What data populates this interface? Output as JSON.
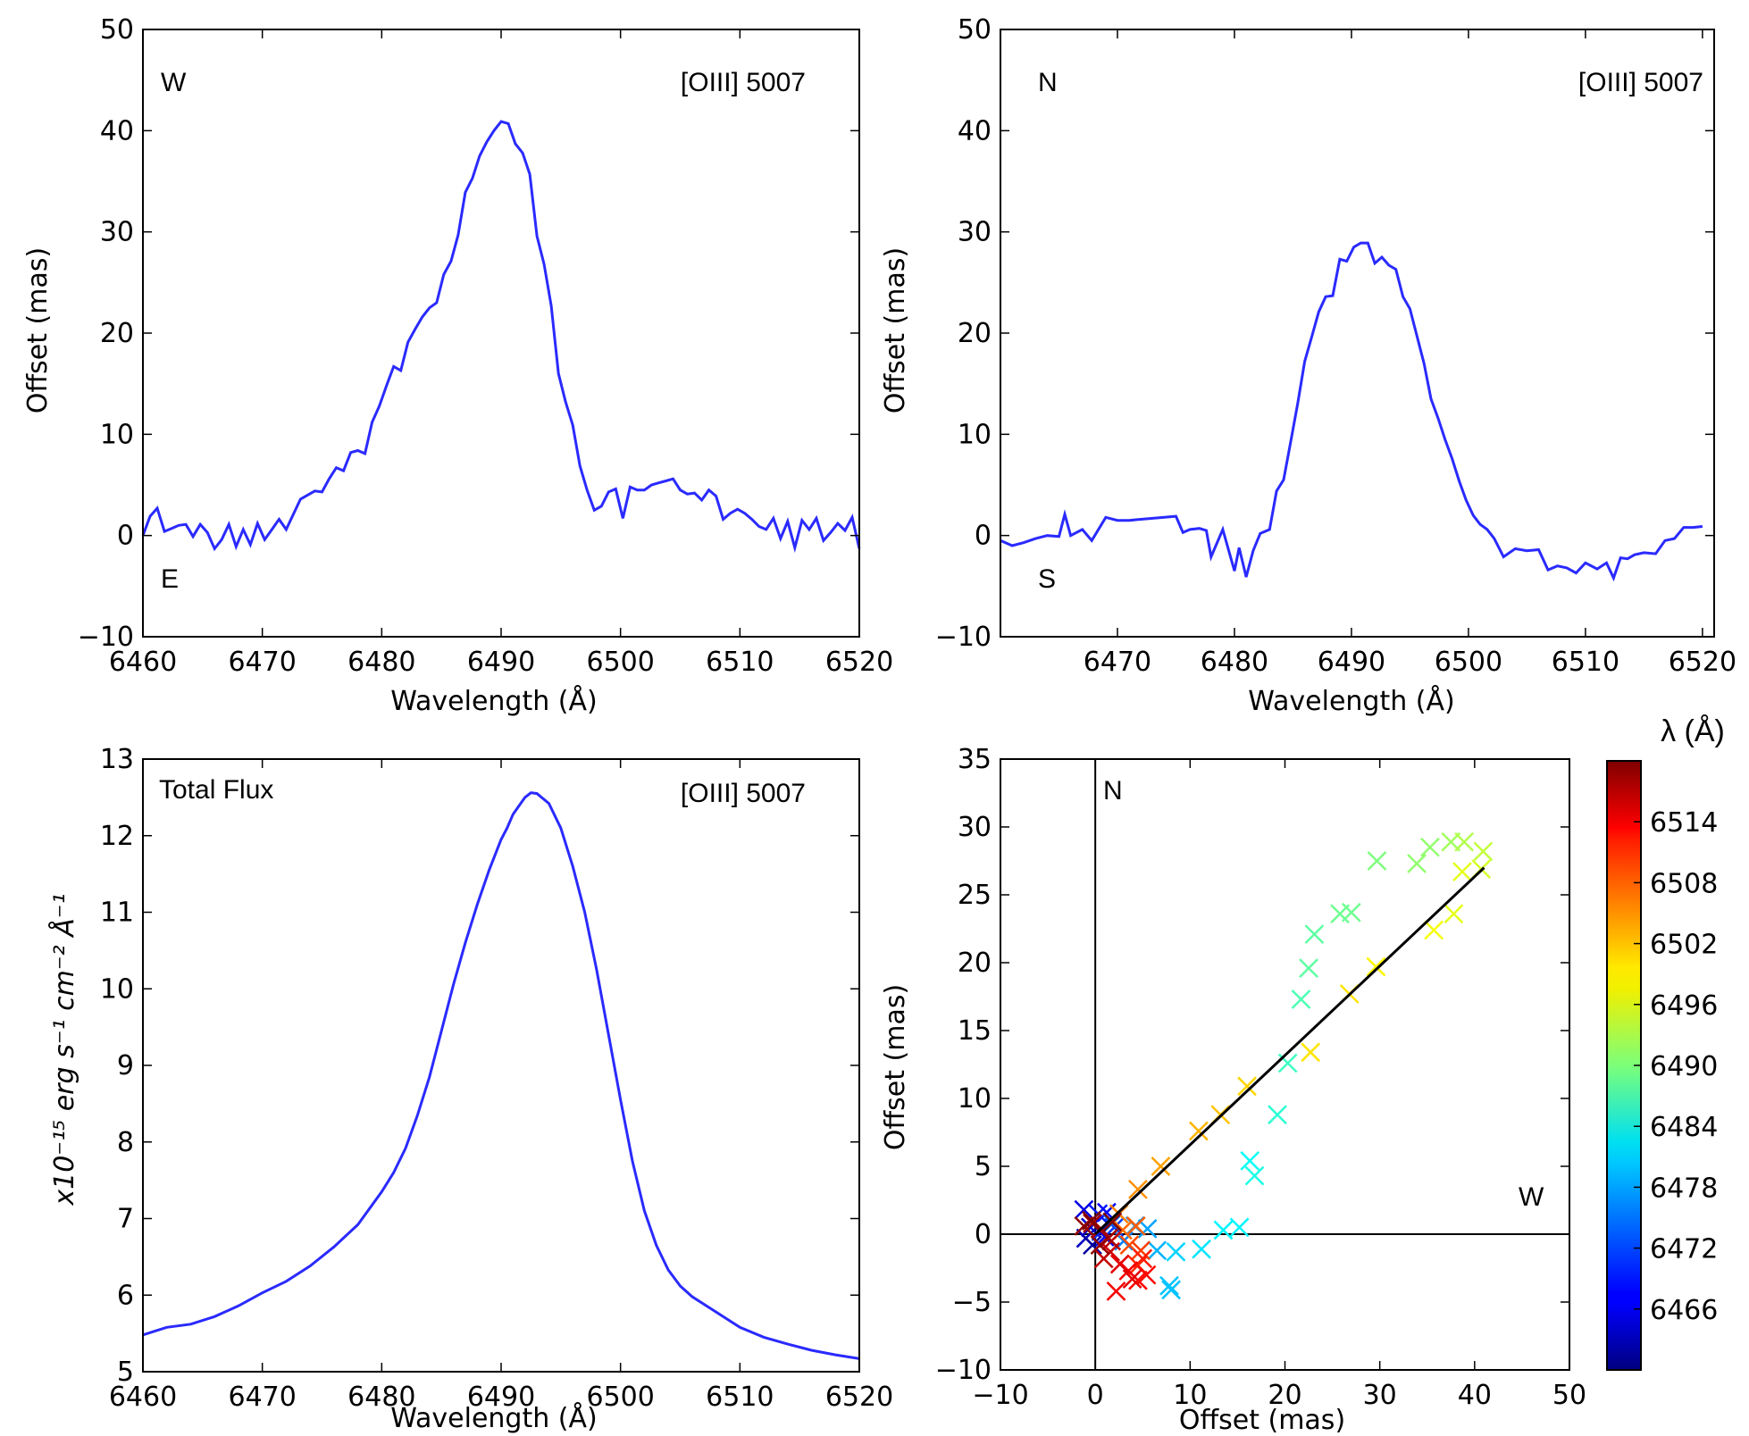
{
  "chart_data": [
    {
      "id": "w_e",
      "type": "line",
      "xlabel": "Wavelength (Å)",
      "ylabel": "Offset (mas)",
      "xlim": [
        6460,
        6520
      ],
      "ylim": [
        -10,
        50
      ],
      "xticks": [
        6460,
        6470,
        6480,
        6490,
        6500,
        6510,
        6520
      ],
      "yticks": [
        -10,
        0,
        10,
        20,
        30,
        40,
        50
      ],
      "xtick_labels": [
        "6460",
        "6470",
        "6480",
        "6490",
        "6500",
        "6510",
        "6520"
      ],
      "ytick_labels": [
        "−10",
        "0",
        "10",
        "20",
        "30",
        "40",
        "50"
      ],
      "annotations": {
        "top_left": "W",
        "top_right": "[OIII] 5007",
        "bottom_left": "E"
      },
      "line_color": "#2a2aff",
      "x": [
        6460.0,
        6460.6,
        6461.2,
        6461.8,
        6462.4,
        6463.0,
        6463.6,
        6464.2,
        6464.8,
        6465.4,
        6466.0,
        6466.6,
        6467.2,
        6467.8,
        6468.4,
        6469.0,
        6469.6,
        6470.2,
        6470.8,
        6471.4,
        6472.0,
        6472.6,
        6473.2,
        6473.8,
        6474.4,
        6475.0,
        6475.6,
        6476.2,
        6476.8,
        6477.4,
        6478.0,
        6478.6,
        6479.2,
        6479.8,
        6480.4,
        6481.0,
        6481.6,
        6482.2,
        6482.8,
        6483.4,
        6484.0,
        6484.6,
        6485.2,
        6485.8,
        6486.4,
        6487.0,
        6487.6,
        6488.2,
        6488.8,
        6489.4,
        6490.0,
        6490.6,
        6491.2,
        6491.8,
        6492.4,
        6493.0,
        6493.6,
        6494.2,
        6494.8,
        6495.4,
        6496.0,
        6496.6,
        6497.2,
        6497.8,
        6498.4,
        6499.0,
        6499.6,
        6500.2,
        6500.8,
        6501.4,
        6502.0,
        6502.6,
        6503.2,
        6503.8,
        6504.4,
        6505.0,
        6505.6,
        6506.2,
        6506.8,
        6507.4,
        6508.0,
        6508.6,
        6509.2,
        6509.8,
        6510.4,
        6511.0,
        6511.6,
        6512.2,
        6512.8,
        6513.4,
        6514.0,
        6514.6,
        6515.2,
        6515.8,
        6516.4,
        6517.0,
        6517.6,
        6518.2,
        6518.8,
        6519.4,
        6520.0
      ],
      "y": [
        0.0,
        1.9,
        2.7,
        0.4,
        0.7,
        1.0,
        1.1,
        -0.1,
        1.1,
        0.3,
        -1.3,
        -0.4,
        1.1,
        -1.1,
        0.6,
        -0.9,
        1.2,
        -0.4,
        0.6,
        1.6,
        0.6,
        2.1,
        3.6,
        4.0,
        4.4,
        4.3,
        5.6,
        6.7,
        6.4,
        8.2,
        8.4,
        8.1,
        11.2,
        12.8,
        14.8,
        16.7,
        16.3,
        19.1,
        20.4,
        21.6,
        22.5,
        23.0,
        25.8,
        27.1,
        29.7,
        33.9,
        35.3,
        37.5,
        38.9,
        40.0,
        40.9,
        40.7,
        38.7,
        37.8,
        35.7,
        29.6,
        26.8,
        22.7,
        16.0,
        13.2,
        10.9,
        6.9,
        4.5,
        2.5,
        2.9,
        4.3,
        4.6,
        1.7,
        4.8,
        4.5,
        4.5,
        5.0,
        5.2,
        5.4,
        5.6,
        4.5,
        4.1,
        4.2,
        3.5,
        4.5,
        3.9,
        1.6,
        2.2,
        2.6,
        2.2,
        1.6,
        0.9,
        0.6,
        1.7,
        -0.3,
        1.4,
        -1.2,
        1.5,
        0.6,
        1.7,
        -0.5,
        0.3,
        1.2,
        0.5,
        1.8,
        -1.3
      ]
    },
    {
      "id": "n_s",
      "type": "line",
      "xlabel": "Wavelength (Å)",
      "ylabel": "Offset (mas)",
      "xlim": [
        6460,
        6521
      ],
      "ylim": [
        -10,
        50
      ],
      "xticks": [
        6470,
        6480,
        6490,
        6500,
        6510,
        6520
      ],
      "yticks": [
        -10,
        0,
        10,
        20,
        30,
        40,
        50
      ],
      "xtick_labels": [
        "6470",
        "6480",
        "6490",
        "6500",
        "6510",
        "6520"
      ],
      "ytick_labels": [
        "−10",
        "0",
        "10",
        "20",
        "30",
        "40",
        "50"
      ],
      "annotations": {
        "top_left": "N",
        "top_right": "[OIII] 5007",
        "bottom_left": "S"
      },
      "line_color": "#2a2aff",
      "x": [
        6460.0,
        6461.0,
        6462.0,
        6463.0,
        6464.0,
        6465.0,
        6465.5,
        6466.0,
        6467.0,
        6467.8,
        6469.0,
        6470.0,
        6471.0,
        6472.0,
        6473.0,
        6474.0,
        6475.0,
        6475.6,
        6476.2,
        6477.0,
        6477.6,
        6478.0,
        6479.0,
        6480.0,
        6480.4,
        6481.0,
        6481.6,
        6482.2,
        6483.0,
        6483.6,
        6484.2,
        6484.8,
        6485.4,
        6486.0,
        6486.6,
        6487.2,
        6487.8,
        6488.4,
        6489.0,
        6489.6,
        6490.2,
        6490.8,
        6491.4,
        6492.0,
        6492.6,
        6493.2,
        6493.8,
        6494.4,
        6495.0,
        6495.6,
        6496.2,
        6496.8,
        6497.4,
        6498.0,
        6498.6,
        6499.2,
        6499.8,
        6500.4,
        6501.0,
        6501.6,
        6502.2,
        6503.0,
        6504.0,
        6505.0,
        6506.0,
        6506.8,
        6507.6,
        6508.4,
        6509.2,
        6510.0,
        6511.0,
        6511.8,
        6512.4,
        6513.0,
        6513.6,
        6514.2,
        6515.0,
        6516.0,
        6516.8,
        6517.6,
        6518.4,
        6519.2,
        6520.0
      ],
      "y": [
        -0.5,
        -1.0,
        -0.7,
        -0.3,
        0.0,
        -0.1,
        2.1,
        0.0,
        0.6,
        -0.5,
        1.8,
        1.5,
        1.5,
        1.6,
        1.7,
        1.8,
        1.9,
        0.3,
        0.6,
        0.7,
        0.5,
        -2.1,
        0.6,
        -3.5,
        -1.2,
        -4.1,
        -1.5,
        0.2,
        0.6,
        4.4,
        5.5,
        9.2,
        13.0,
        17.2,
        19.6,
        22.1,
        23.6,
        23.7,
        27.3,
        27.1,
        28.5,
        28.9,
        28.9,
        26.9,
        27.5,
        26.7,
        26.3,
        23.6,
        22.4,
        19.7,
        17.0,
        13.5,
        11.6,
        9.5,
        7.6,
        5.4,
        3.5,
        2.0,
        1.1,
        0.6,
        -0.3,
        -2.1,
        -1.3,
        -1.5,
        -1.4,
        -3.4,
        -3.0,
        -3.2,
        -3.7,
        -2.7,
        -3.3,
        -2.7,
        -4.2,
        -2.2,
        -2.3,
        -1.9,
        -1.7,
        -1.8,
        -0.5,
        -0.3,
        0.8,
        0.8,
        0.9
      ]
    },
    {
      "id": "total_flux",
      "type": "line",
      "xlabel": "Wavelength (Å)",
      "ylabel": "x10⁻¹⁵ erg s⁻¹ cm⁻² Å⁻¹",
      "xlim": [
        6460,
        6520
      ],
      "ylim": [
        5,
        13
      ],
      "xticks": [
        6460,
        6470,
        6480,
        6490,
        6500,
        6510,
        6520
      ],
      "yticks": [
        5,
        6,
        7,
        8,
        9,
        10,
        11,
        12,
        13
      ],
      "xtick_labels": [
        "6460",
        "6470",
        "6480",
        "6490",
        "6500",
        "6510",
        "6520"
      ],
      "ytick_labels": [
        "5",
        "6",
        "7",
        "8",
        "9",
        "10",
        "11",
        "12",
        "13"
      ],
      "annotations": {
        "top_left": "Total Flux",
        "top_right": "[OIII] 5007"
      },
      "line_color": "#2a2aff",
      "x": [
        6460,
        6462,
        6464,
        6466,
        6468,
        6470,
        6472,
        6474,
        6476,
        6478,
        6480,
        6481,
        6482,
        6483,
        6484,
        6485,
        6486,
        6487,
        6488,
        6489,
        6490,
        6490.5,
        6491,
        6492,
        6492.5,
        6493,
        6494,
        6495,
        6496,
        6497,
        6498,
        6499,
        6500,
        6501,
        6502,
        6503,
        6504,
        6505,
        6506,
        6508,
        6510,
        6512,
        6514,
        6516,
        6518,
        6520
      ],
      "y": [
        5.48,
        5.58,
        5.62,
        5.72,
        5.86,
        6.03,
        6.18,
        6.38,
        6.63,
        6.92,
        7.35,
        7.6,
        7.92,
        8.35,
        8.85,
        9.45,
        10.05,
        10.6,
        11.1,
        11.55,
        11.95,
        12.1,
        12.28,
        12.5,
        12.56,
        12.55,
        12.42,
        12.1,
        11.6,
        11.0,
        10.25,
        9.4,
        8.55,
        7.75,
        7.1,
        6.65,
        6.33,
        6.12,
        5.98,
        5.78,
        5.58,
        5.45,
        5.36,
        5.28,
        5.22,
        5.17
      ]
    },
    {
      "id": "scatter",
      "type": "scatter",
      "xlabel": "Offset (mas)",
      "ylabel": "Offset (mas)",
      "xlim": [
        -10,
        50
      ],
      "ylim": [
        -10,
        35
      ],
      "xticks": [
        -10,
        0,
        10,
        20,
        30,
        40,
        50
      ],
      "yticks": [
        -10,
        -5,
        0,
        5,
        10,
        15,
        20,
        25,
        30,
        35
      ],
      "xtick_labels": [
        "−10",
        "0",
        "10",
        "20",
        "30",
        "40",
        "50"
      ],
      "ytick_labels": [
        "−10",
        "−5",
        "0",
        "5",
        "10",
        "15",
        "20",
        "25",
        "30",
        "35"
      ],
      "annotations": {
        "north": "N",
        "west": "W"
      },
      "marker": "x",
      "fit_line": {
        "x": [
          0,
          41
        ],
        "y": [
          0,
          27
        ],
        "color": "#000000"
      },
      "colorbar": {
        "label": "λ (Å)",
        "range": [
          6460,
          6520
        ],
        "ticks": [
          6466,
          6472,
          6478,
          6484,
          6490,
          6496,
          6502,
          6508,
          6514
        ],
        "tick_labels": [
          "6466",
          "6472",
          "6478",
          "6484",
          "6490",
          "6496",
          "6502",
          "6508",
          "6514"
        ]
      },
      "points": [
        {
          "x": -1.2,
          "y": 1.8,
          "wl": 6466
        },
        {
          "x": -0.5,
          "y": 0.5,
          "wl": 6465
        },
        {
          "x": 0.3,
          "y": 1.5,
          "wl": 6469
        },
        {
          "x": -1.0,
          "y": -0.3,
          "wl": 6464
        },
        {
          "x": 0.6,
          "y": 0.2,
          "wl": 6470
        },
        {
          "x": 1.2,
          "y": 1.6,
          "wl": 6468
        },
        {
          "x": -0.3,
          "y": -0.8,
          "wl": 6462
        },
        {
          "x": 1.0,
          "y": -0.2,
          "wl": 6467
        },
        {
          "x": 2.0,
          "y": 0.5,
          "wl": 6471
        },
        {
          "x": 1.8,
          "y": 0.8,
          "wl": 6474
        },
        {
          "x": 3.0,
          "y": -0.5,
          "wl": 6475
        },
        {
          "x": 4.2,
          "y": 0.6,
          "wl": 6476
        },
        {
          "x": 5.5,
          "y": 0.4,
          "wl": 6477
        },
        {
          "x": 6.5,
          "y": -1.2,
          "wl": 6478
        },
        {
          "x": 7.8,
          "y": -3.8,
          "wl": 6479
        },
        {
          "x": 8.0,
          "y": -4.1,
          "wl": 6479
        },
        {
          "x": 8.5,
          "y": -1.3,
          "wl": 6480
        },
        {
          "x": 11.2,
          "y": -1.1,
          "wl": 6481
        },
        {
          "x": 13.5,
          "y": 0.3,
          "wl": 6482
        },
        {
          "x": 15.2,
          "y": 0.5,
          "wl": 6482
        },
        {
          "x": 16.3,
          "y": 5.4,
          "wl": 6483
        },
        {
          "x": 16.8,
          "y": 4.3,
          "wl": 6484
        },
        {
          "x": 19.2,
          "y": 8.8,
          "wl": 6485
        },
        {
          "x": 20.3,
          "y": 12.6,
          "wl": 6486
        },
        {
          "x": 21.7,
          "y": 17.3,
          "wl": 6487
        },
        {
          "x": 22.5,
          "y": 19.6,
          "wl": 6488
        },
        {
          "x": 23.1,
          "y": 22.1,
          "wl": 6488
        },
        {
          "x": 25.8,
          "y": 23.6,
          "wl": 6489
        },
        {
          "x": 27.0,
          "y": 23.7,
          "wl": 6489
        },
        {
          "x": 29.7,
          "y": 27.5,
          "wl": 6490
        },
        {
          "x": 33.9,
          "y": 27.3,
          "wl": 6491
        },
        {
          "x": 35.3,
          "y": 28.5,
          "wl": 6491
        },
        {
          "x": 37.5,
          "y": 28.9,
          "wl": 6492
        },
        {
          "x": 38.9,
          "y": 28.9,
          "wl": 6493
        },
        {
          "x": 40.9,
          "y": 28.2,
          "wl": 6494
        },
        {
          "x": 40.7,
          "y": 26.9,
          "wl": 6495
        },
        {
          "x": 38.7,
          "y": 26.7,
          "wl": 6496
        },
        {
          "x": 37.8,
          "y": 23.6,
          "wl": 6496
        },
        {
          "x": 35.7,
          "y": 22.4,
          "wl": 6497
        },
        {
          "x": 29.6,
          "y": 19.7,
          "wl": 6498
        },
        {
          "x": 26.8,
          "y": 17.7,
          "wl": 6499
        },
        {
          "x": 22.7,
          "y": 13.4,
          "wl": 6499
        },
        {
          "x": 16.0,
          "y": 10.9,
          "wl": 6500
        },
        {
          "x": 13.2,
          "y": 8.8,
          "wl": 6501
        },
        {
          "x": 10.9,
          "y": 7.6,
          "wl": 6502
        },
        {
          "x": 6.9,
          "y": 5.0,
          "wl": 6503
        },
        {
          "x": 4.5,
          "y": 3.3,
          "wl": 6504
        },
        {
          "x": 2.5,
          "y": 1.5,
          "wl": 6505
        },
        {
          "x": 2.9,
          "y": 0.3,
          "wl": 6506
        },
        {
          "x": 4.3,
          "y": 0.6,
          "wl": 6507
        },
        {
          "x": 3.6,
          "y": -0.8,
          "wl": 6508
        },
        {
          "x": 4.8,
          "y": -1.2,
          "wl": 6509
        },
        {
          "x": 4.5,
          "y": -2.3,
          "wl": 6510
        },
        {
          "x": 5.0,
          "y": -1.8,
          "wl": 6511
        },
        {
          "x": 5.4,
          "y": -3.0,
          "wl": 6512
        },
        {
          "x": 4.5,
          "y": -3.4,
          "wl": 6512
        },
        {
          "x": 3.5,
          "y": -2.7,
          "wl": 6513
        },
        {
          "x": 2.2,
          "y": -4.2,
          "wl": 6513
        },
        {
          "x": 3.9,
          "y": -3.3,
          "wl": 6514
        },
        {
          "x": 2.6,
          "y": -2.2,
          "wl": 6514
        },
        {
          "x": 1.6,
          "y": -1.3,
          "wl": 6515
        },
        {
          "x": 0.9,
          "y": -1.8,
          "wl": 6516
        },
        {
          "x": 1.7,
          "y": -0.5,
          "wl": 6516
        },
        {
          "x": 0.6,
          "y": 0.4,
          "wl": 6517
        },
        {
          "x": -0.3,
          "y": 0.8,
          "wl": 6518
        },
        {
          "x": 1.4,
          "y": -0.3,
          "wl": 6518
        },
        {
          "x": -1.2,
          "y": 0.6,
          "wl": 6519
        },
        {
          "x": 0.5,
          "y": -0.8,
          "wl": 6519
        },
        {
          "x": -0.4,
          "y": 1.0,
          "wl": 6520
        },
        {
          "x": 1.8,
          "y": 0.9,
          "wl": 6520
        }
      ]
    }
  ]
}
